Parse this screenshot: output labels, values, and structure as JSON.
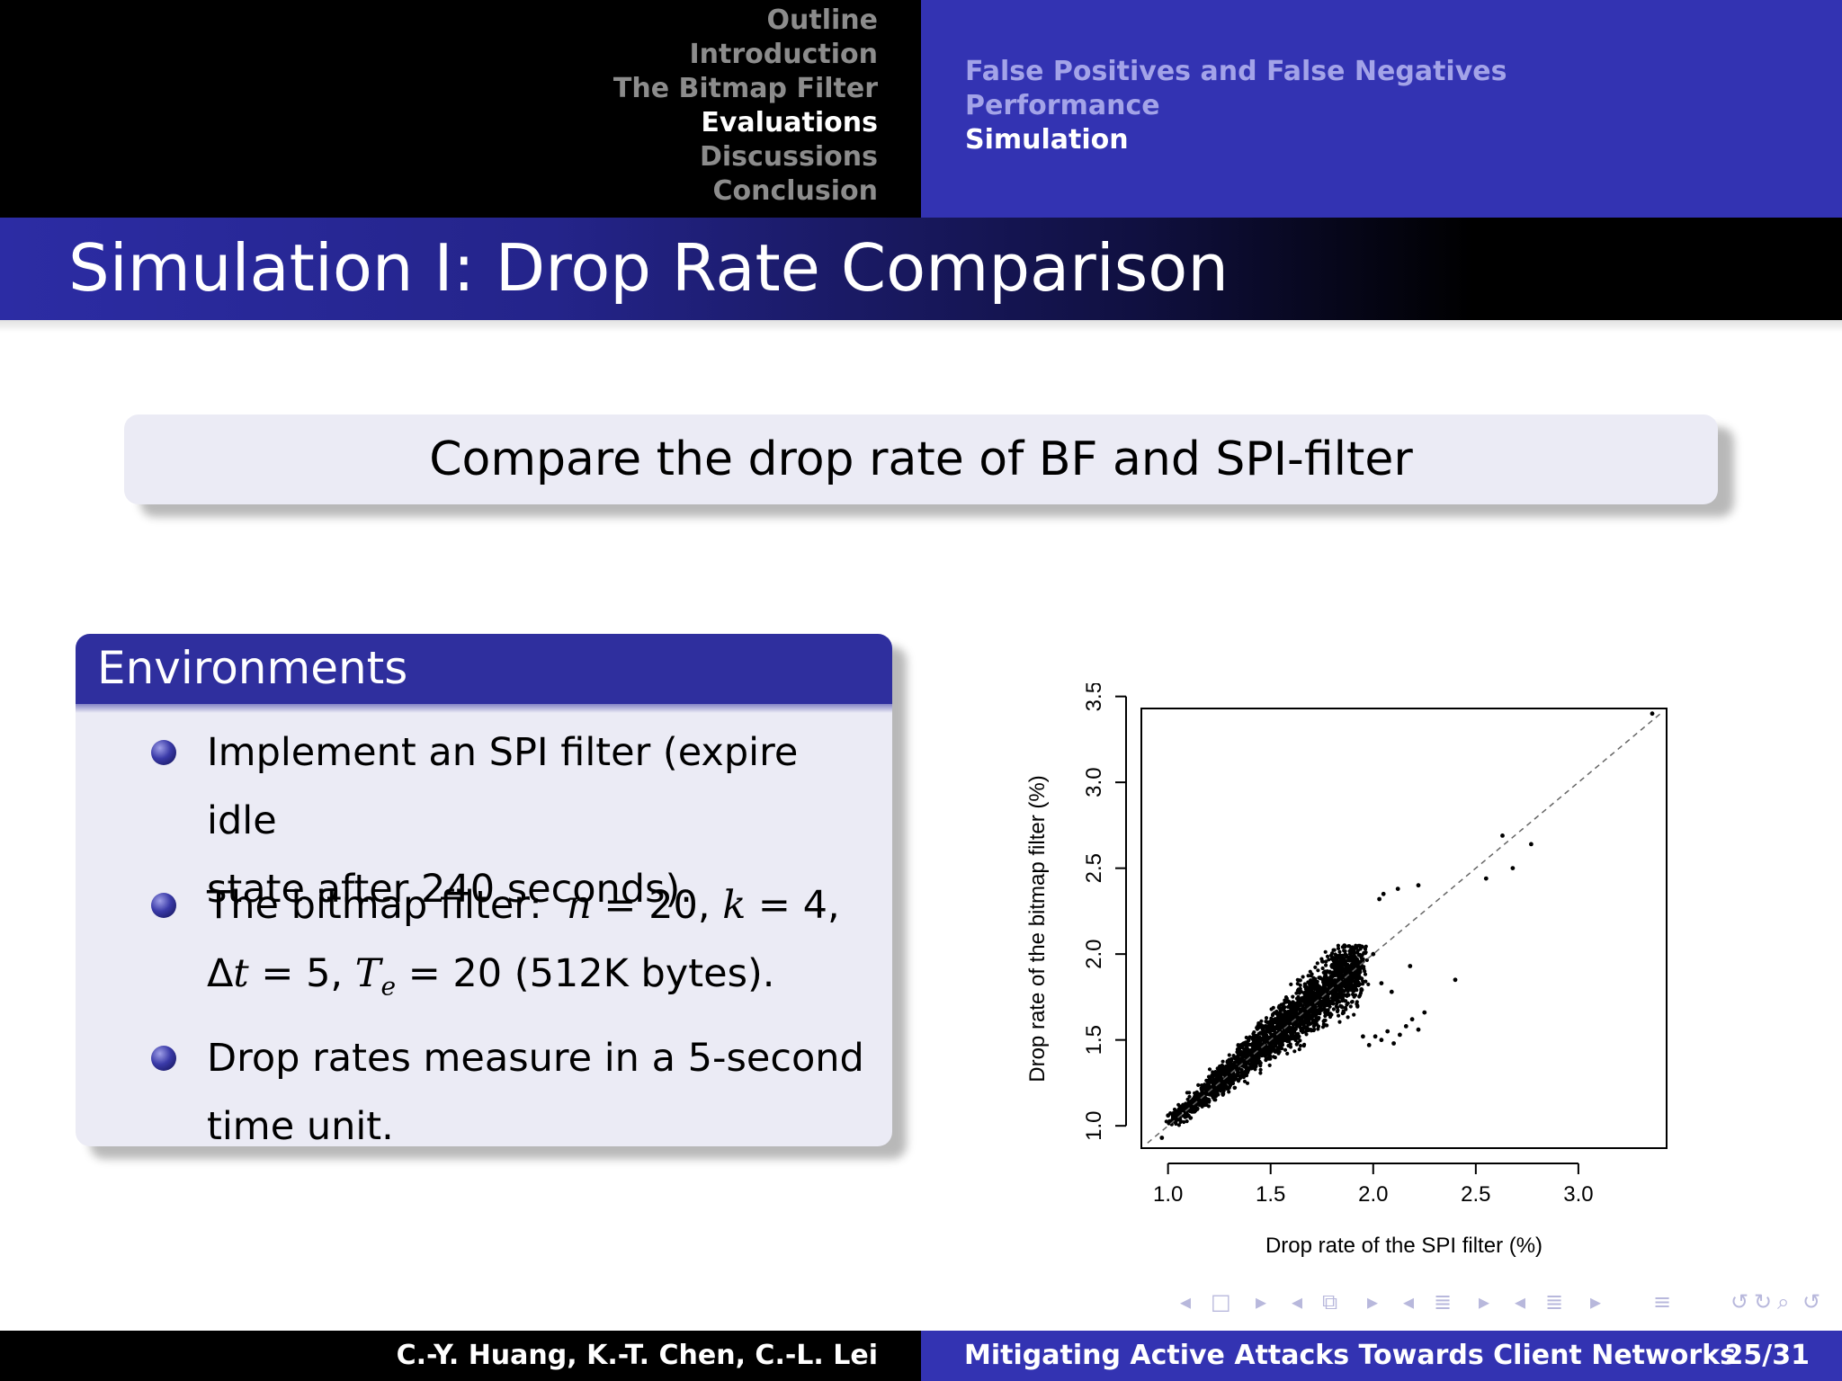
{
  "header": {
    "sections": [
      "Outline",
      "Introduction",
      "The Bitmap Filter",
      "Evaluations",
      "Discussions",
      "Conclusion"
    ],
    "active_section": "Evaluations",
    "subsections": [
      "False Positives and False Negatives",
      "Performance",
      "Simulation"
    ],
    "active_subsection": "Simulation"
  },
  "slide": {
    "title": "Simulation I: Drop Rate Comparison",
    "highlight": "Compare the drop rate of BF and SPI-filter"
  },
  "environments": {
    "heading": "Environments",
    "items": [
      {
        "line1": "Implement an SPI filter (expire idle",
        "line2": "state after 240 seconds)."
      },
      {
        "line1_prefix": "The bitmap filter:",
        "n_var": "n",
        "n_val": "= 20,",
        "k_var": "k",
        "k_val": "= 4,",
        "delta": "Δ",
        "t_var": "t",
        "t_val": "= 5,",
        "te_var": "T",
        "te_sub": "e",
        "te_val": "= 20 (512K bytes)."
      },
      {
        "line1": "Drop rates measure in a 5-second",
        "line2": "time unit."
      }
    ]
  },
  "chart_data": {
    "type": "scatter",
    "xlabel": "Drop rate of the SPI filter (%)",
    "ylabel": "Drop rate of the bitmap filter (%)",
    "xlim": [
      0.87,
      3.43
    ],
    "ylim": [
      0.87,
      3.43
    ],
    "x_ticks": [
      "1.0",
      "1.5",
      "2.0",
      "2.5",
      "3.0"
    ],
    "y_ticks": [
      "1.0",
      "1.5",
      "2.0",
      "2.5",
      "3.0",
      "3.5"
    ],
    "reference_line": "y = x (dashed)",
    "main_cluster": {
      "x_range": [
        1.0,
        1.97
      ],
      "y_range": [
        1.0,
        2.05
      ],
      "approx_points": 2600
    },
    "points": [
      [
        0.97,
        0.93
      ],
      [
        1.0,
        1.06
      ],
      [
        1.03,
        1.07
      ],
      [
        1.82,
        1.88
      ],
      [
        1.86,
        2.05
      ],
      [
        1.9,
        1.91
      ],
      [
        1.95,
        1.97
      ],
      [
        2.0,
        2.0
      ],
      [
        1.95,
        1.52
      ],
      [
        1.98,
        1.47
      ],
      [
        2.01,
        1.52
      ],
      [
        2.04,
        1.5
      ],
      [
        2.07,
        1.55
      ],
      [
        2.1,
        1.48
      ],
      [
        2.13,
        1.53
      ],
      [
        2.16,
        1.58
      ],
      [
        2.19,
        1.62
      ],
      [
        2.22,
        1.56
      ],
      [
        2.25,
        1.66
      ],
      [
        2.04,
        1.83
      ],
      [
        2.09,
        1.78
      ],
      [
        2.18,
        1.93
      ],
      [
        2.03,
        2.32
      ],
      [
        2.05,
        2.35
      ],
      [
        2.12,
        2.38
      ],
      [
        2.22,
        2.4
      ],
      [
        2.4,
        1.85
      ],
      [
        2.55,
        2.44
      ],
      [
        2.63,
        2.69
      ],
      [
        2.68,
        2.5
      ],
      [
        2.77,
        2.64
      ],
      [
        3.36,
        3.4
      ]
    ]
  },
  "nav_symbols": [
    "◂",
    "□",
    "▸",
    "◂",
    "⧉",
    "▸",
    "◂",
    "≣",
    "▸",
    "◂",
    "≣",
    "▸",
    "≡",
    "↺",
    "↻",
    "⌕",
    "↺"
  ],
  "footer": {
    "authors": "C.-Y. Huang, K.-T. Chen, C.-L. Lei",
    "short_title": "Mitigating Active Attacks Towards Client Networks",
    "page": "25/31"
  },
  "colors": {
    "beamer_blue": "#3333b2",
    "block_title": "#2f2f9e",
    "block_body": "#ebebf5",
    "inactive_nav": "#8c8c8c",
    "sub_nav": "#a3a3e8"
  }
}
